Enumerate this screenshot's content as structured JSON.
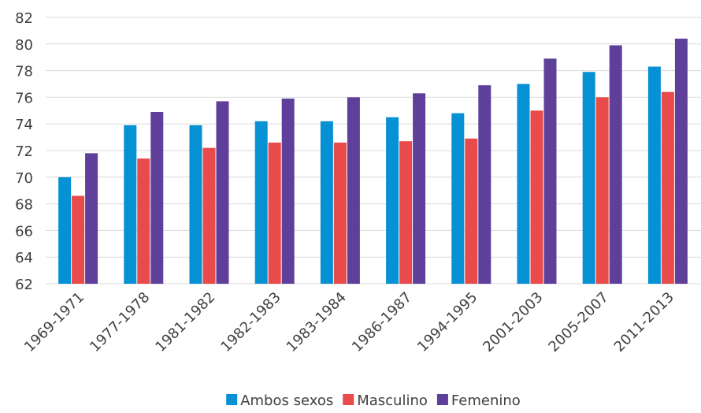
{
  "chart_data": {
    "type": "bar",
    "categories": [
      "1969-1971",
      "1977-1978",
      "1981-1982",
      "1982-1983",
      "1983-1984",
      "1986-1987",
      "1994-1995",
      "2001-2003",
      "2005-2007",
      "2011-2013"
    ],
    "series": [
      {
        "name": "Ambos sexos",
        "color": "#0591d3",
        "values": [
          70.0,
          73.9,
          73.9,
          74.2,
          74.2,
          74.5,
          74.8,
          77.0,
          77.9,
          78.3
        ]
      },
      {
        "name": "Masculino",
        "color": "#e94b4b",
        "values": [
          68.6,
          71.4,
          72.2,
          72.6,
          72.6,
          72.7,
          72.9,
          75.0,
          76.0,
          76.4
        ]
      },
      {
        "name": "Femenino",
        "color": "#5e3f99",
        "values": [
          71.8,
          74.9,
          75.7,
          75.9,
          76.0,
          76.3,
          76.9,
          78.9,
          79.9,
          80.4
        ]
      }
    ],
    "ylim": [
      62,
      82
    ],
    "yticks": [
      62,
      64,
      66,
      68,
      70,
      72,
      74,
      76,
      78,
      80,
      82
    ],
    "grid": true,
    "legend": "bottom"
  }
}
